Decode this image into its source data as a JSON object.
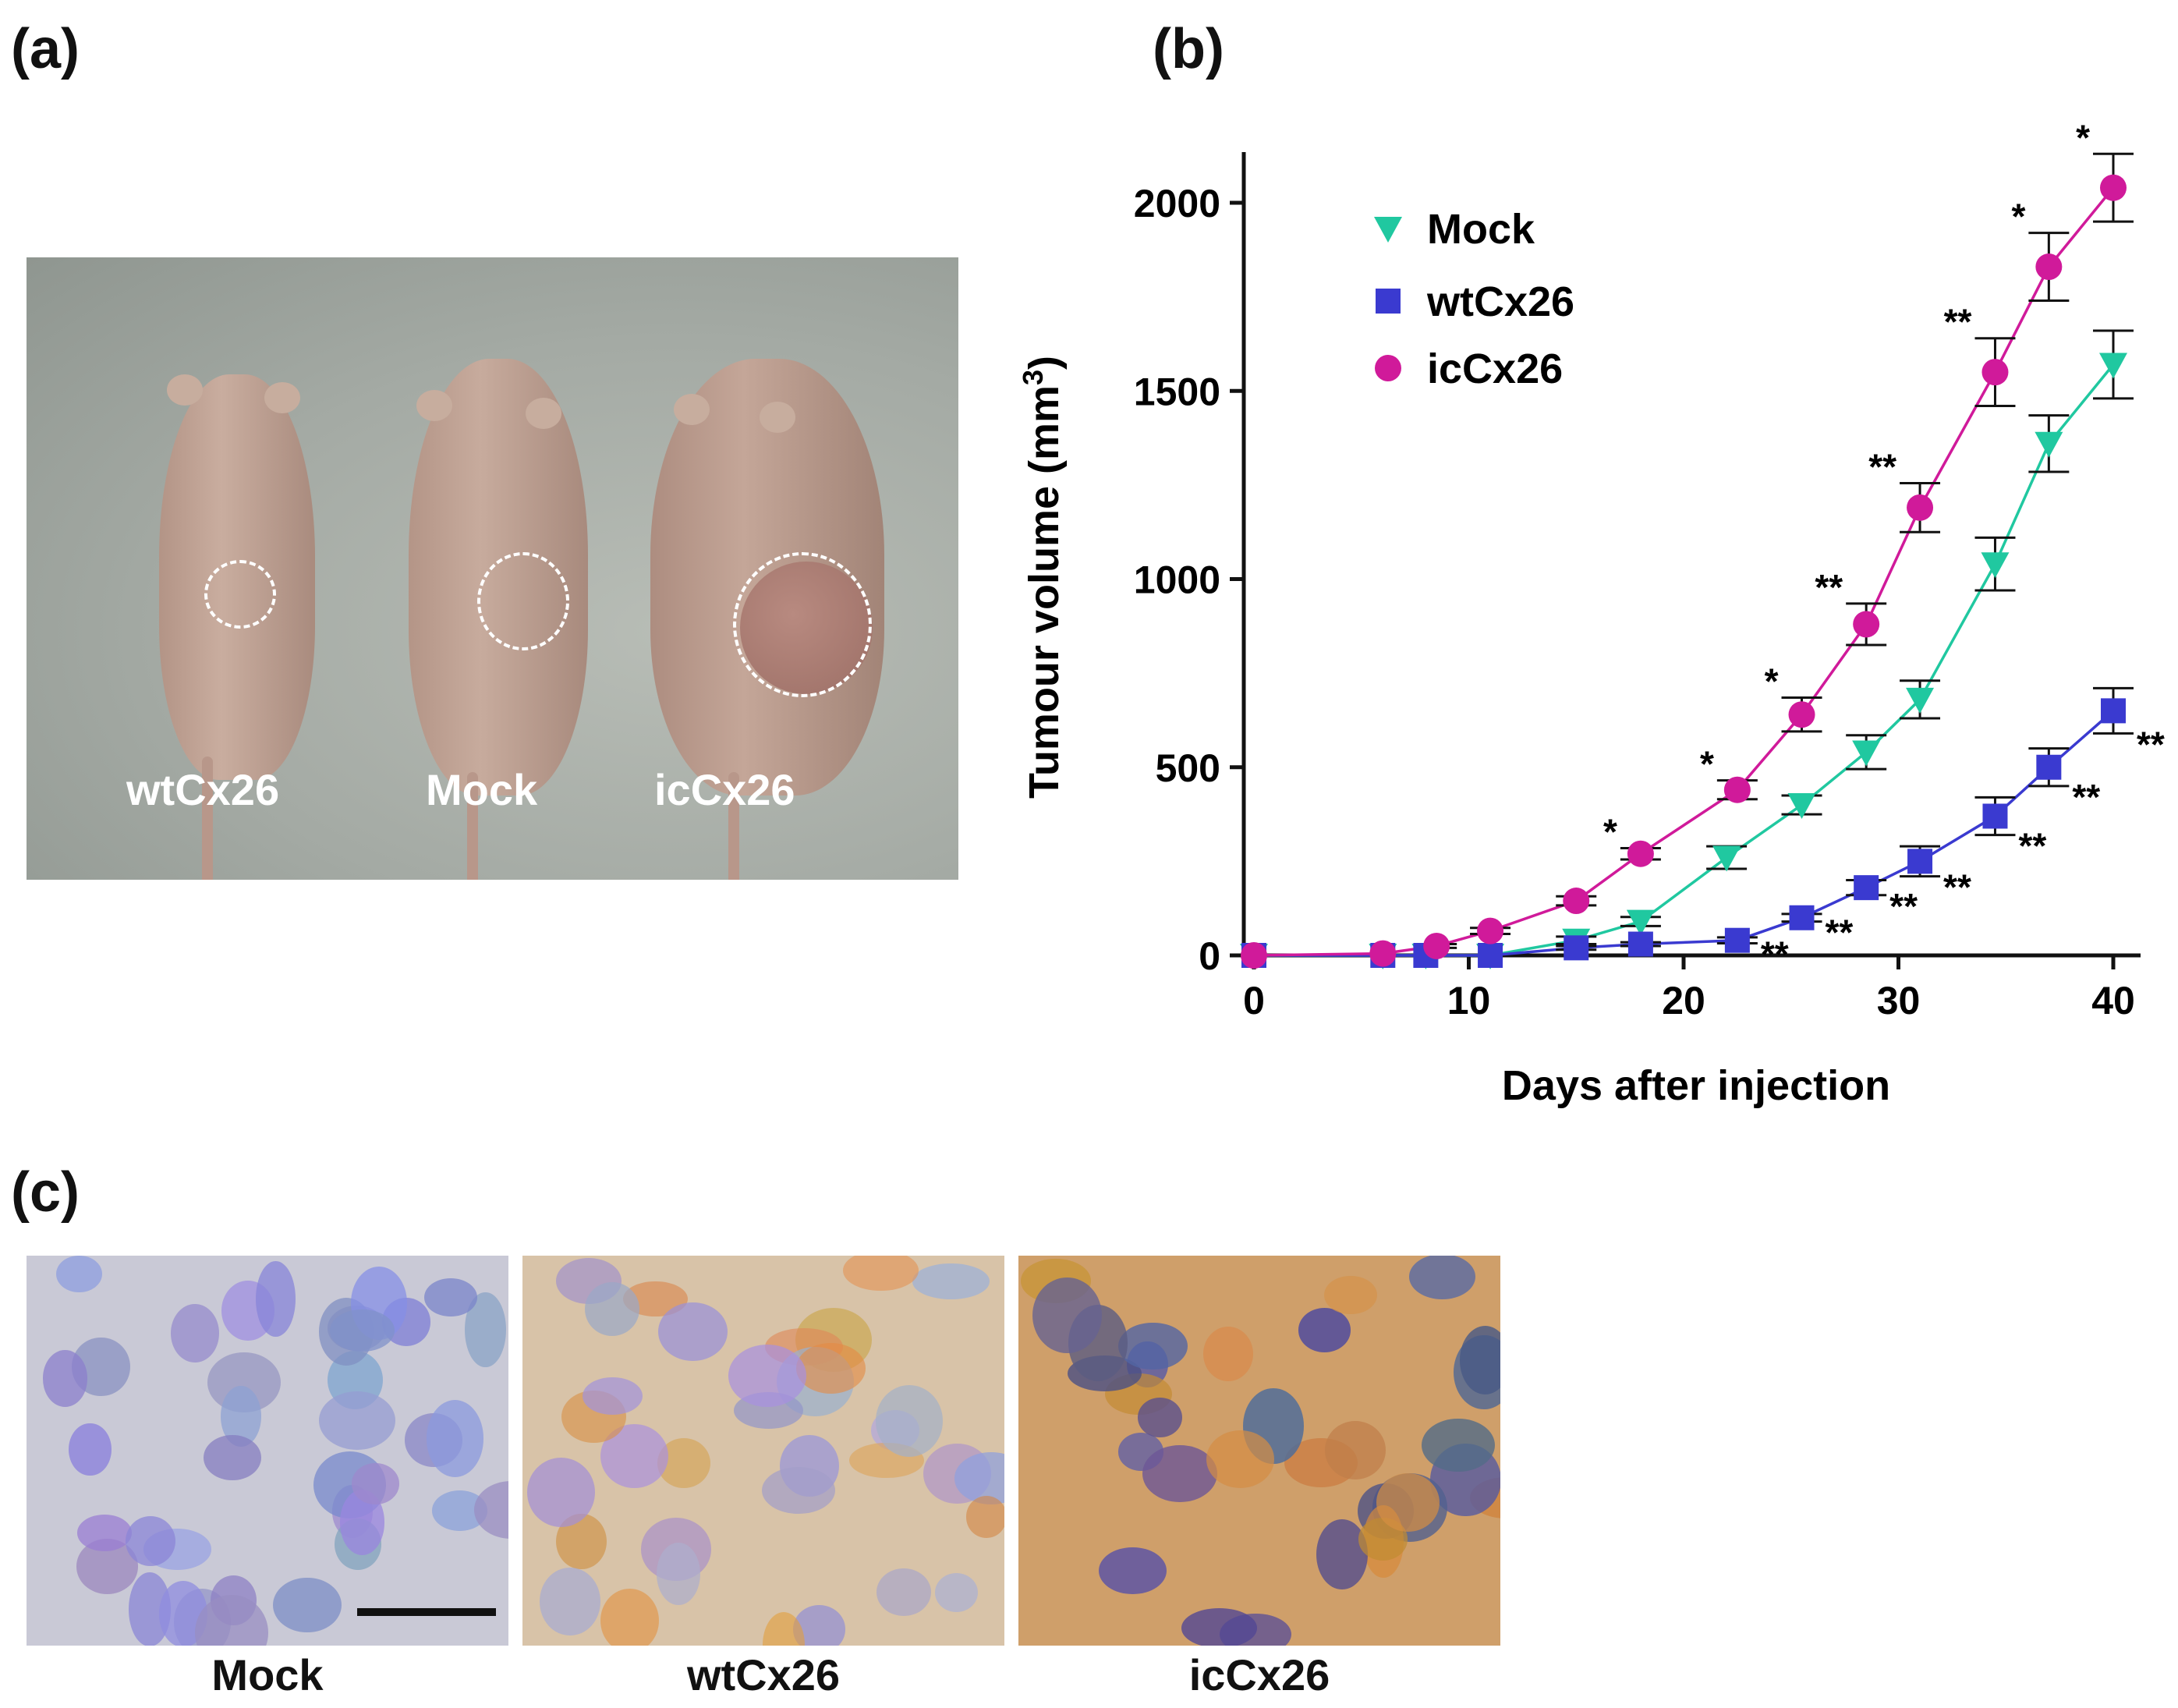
{
  "panels": {
    "a": {
      "label": "(a)",
      "mouse_labels": [
        "wtCx26",
        "Mock",
        "icCx26"
      ]
    },
    "b": {
      "label": "(b)"
    },
    "c": {
      "label": "(c)",
      "tissue_labels": [
        "Mock",
        "wtCx26",
        "icCx26"
      ]
    }
  },
  "colors": {
    "mock": "#20c8a0",
    "wtCx26": "#3a3ad0",
    "icCx26": "#d01a9a"
  },
  "chart_data": {
    "type": "line",
    "xlabel": "Days after injection",
    "ylabel": "Tumour volume (mm",
    "ylabel_sup": "3",
    "ylabel_end": ")",
    "xlim": [
      0,
      41
    ],
    "ylim": [
      0,
      2150
    ],
    "xticks": [
      0,
      10,
      20,
      30,
      40
    ],
    "yticks": [
      0,
      500,
      1000,
      1500,
      2000
    ],
    "legend_position": "top-left",
    "series": [
      {
        "name": "Mock",
        "marker": "triangle-down",
        "color": "#20c8a0",
        "x": [
          0,
          6,
          8,
          11,
          15,
          18,
          22,
          25.5,
          28.5,
          31,
          34.5,
          37,
          40
        ],
        "y": [
          0,
          0,
          0,
          0,
          40,
          90,
          260,
          400,
          540,
          680,
          1040,
          1360,
          1570
        ],
        "err": [
          0,
          0,
          0,
          0,
          10,
          12,
          30,
          25,
          45,
          50,
          70,
          75,
          90
        ]
      },
      {
        "name": "wtCx26",
        "marker": "square",
        "color": "#3a3ad0",
        "x": [
          0,
          6,
          8,
          11,
          15,
          18,
          22.5,
          25.5,
          28.5,
          31,
          34.5,
          37,
          40
        ],
        "y": [
          0,
          0,
          0,
          0,
          20,
          30,
          40,
          100,
          180,
          250,
          370,
          500,
          650
        ],
        "err": [
          0,
          0,
          0,
          0,
          5,
          5,
          8,
          10,
          20,
          40,
          50,
          50,
          60
        ]
      },
      {
        "name": "icCx26",
        "marker": "circle",
        "color": "#d01a9a",
        "x": [
          0,
          6,
          8.5,
          11,
          15,
          18,
          22.5,
          25.5,
          28.5,
          31,
          34.5,
          37,
          40
        ],
        "y": [
          0,
          5,
          25,
          65,
          145,
          270,
          440,
          640,
          880,
          1190,
          1550,
          1830,
          2040
        ],
        "err": [
          0,
          0,
          5,
          8,
          12,
          15,
          25,
          45,
          55,
          65,
          90,
          90,
          90
        ]
      }
    ],
    "annotations": [
      {
        "series": "icCx26",
        "index": 5,
        "text": "*"
      },
      {
        "series": "icCx26",
        "index": 6,
        "text": "*"
      },
      {
        "series": "icCx26",
        "index": 7,
        "text": "*"
      },
      {
        "series": "icCx26",
        "index": 8,
        "text": "**"
      },
      {
        "series": "icCx26",
        "index": 9,
        "text": "**"
      },
      {
        "series": "icCx26",
        "index": 10,
        "text": "**"
      },
      {
        "series": "icCx26",
        "index": 11,
        "text": "*"
      },
      {
        "series": "icCx26",
        "index": 12,
        "text": "*"
      },
      {
        "series": "wtCx26",
        "index": 6,
        "text": "**"
      },
      {
        "series": "wtCx26",
        "index": 7,
        "text": "**"
      },
      {
        "series": "wtCx26",
        "index": 8,
        "text": "**"
      },
      {
        "series": "wtCx26",
        "index": 9,
        "text": "**"
      },
      {
        "series": "wtCx26",
        "index": 10,
        "text": "**"
      },
      {
        "series": "wtCx26",
        "index": 11,
        "text": "**"
      },
      {
        "series": "wtCx26",
        "index": 12,
        "text": "**"
      }
    ]
  }
}
